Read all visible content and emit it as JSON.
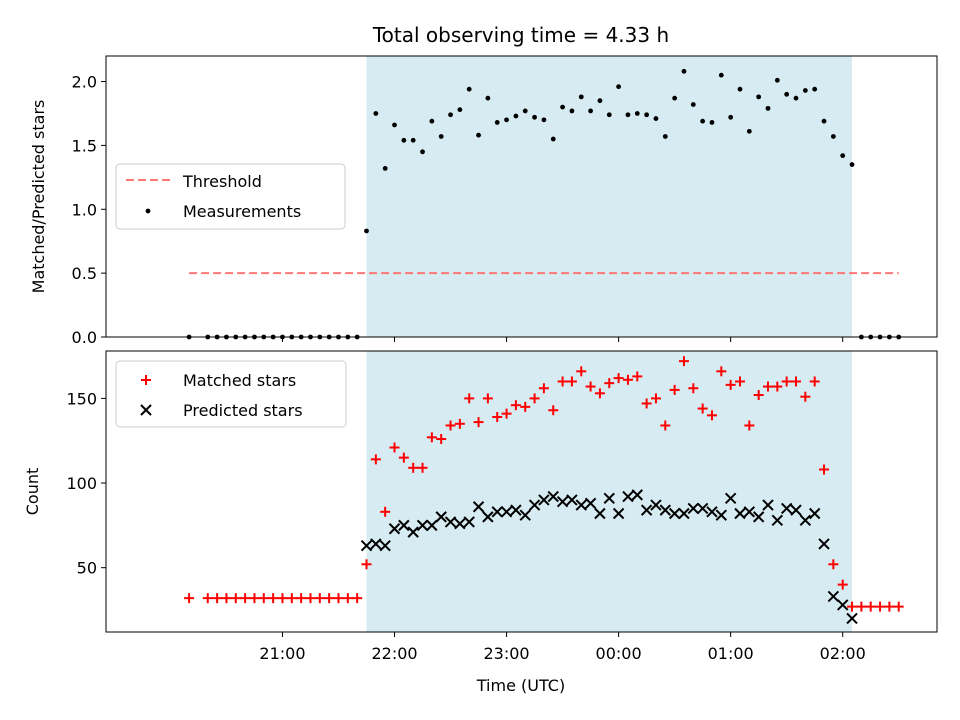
{
  "chart_data": {
    "title": "Total observing time = 4.33 h",
    "xlabel": "Time (UTC)",
    "x_tick_labels": [
      "21:00",
      "22:00",
      "23:00",
      "00:00",
      "01:00",
      "02:00"
    ],
    "observing_window": {
      "start_min": 1305,
      "end_min": 1565,
      "shade_color": "#add8e6"
    },
    "panels": [
      {
        "type": "scatter",
        "ylabel": "Matched/Predicted stars",
        "ylim": [
          0,
          2.2
        ],
        "y_ticks": [
          0,
          0.5,
          1,
          1.5,
          2
        ],
        "y_tick_labels": [
          "0.0",
          "0.5",
          "1.0",
          "1.5",
          "2.0"
        ],
        "legend_position": "center-left",
        "threshold": {
          "name": "Threshold",
          "value": 0.5,
          "color": "#ff7777",
          "x_range": [
            1210,
            1590
          ]
        },
        "series": [
          {
            "name": "Measurements",
            "color": "#000000",
            "marker": "dot",
            "points": [
              [
                1210,
                0
              ],
              [
                1220,
                0
              ],
              [
                1225,
                0
              ],
              [
                1230,
                0
              ],
              [
                1235,
                0
              ],
              [
                1240,
                0
              ],
              [
                1245,
                0
              ],
              [
                1250,
                0
              ],
              [
                1255,
                0
              ],
              [
                1260,
                0
              ],
              [
                1265,
                0
              ],
              [
                1270,
                0
              ],
              [
                1275,
                0
              ],
              [
                1280,
                0
              ],
              [
                1285,
                0
              ],
              [
                1290,
                0
              ],
              [
                1295,
                0
              ],
              [
                1300,
                0
              ],
              [
                1305,
                0.83
              ],
              [
                1310,
                1.75
              ],
              [
                1315,
                1.32
              ],
              [
                1320,
                1.66
              ],
              [
                1325,
                1.54
              ],
              [
                1330,
                1.54
              ],
              [
                1335,
                1.45
              ],
              [
                1340,
                1.69
              ],
              [
                1345,
                1.57
              ],
              [
                1350,
                1.74
              ],
              [
                1355,
                1.78
              ],
              [
                1360,
                1.94
              ],
              [
                1365,
                1.58
              ],
              [
                1370,
                1.87
              ],
              [
                1375,
                1.68
              ],
              [
                1380,
                1.7
              ],
              [
                1385,
                1.73
              ],
              [
                1390,
                1.77
              ],
              [
                1395,
                1.72
              ],
              [
                1400,
                1.7
              ],
              [
                1405,
                1.55
              ],
              [
                1410,
                1.8
              ],
              [
                1415,
                1.77
              ],
              [
                1420,
                1.88
              ],
              [
                1425,
                1.77
              ],
              [
                1430,
                1.85
              ],
              [
                1435,
                1.74
              ],
              [
                1440,
                1.96
              ],
              [
                1445,
                1.74
              ],
              [
                1450,
                1.75
              ],
              [
                1455,
                1.74
              ],
              [
                1460,
                1.71
              ],
              [
                1465,
                1.57
              ],
              [
                1470,
                1.87
              ],
              [
                1475,
                2.08
              ],
              [
                1480,
                1.82
              ],
              [
                1485,
                1.69
              ],
              [
                1490,
                1.68
              ],
              [
                1495,
                2.05
              ],
              [
                1500,
                1.72
              ],
              [
                1505,
                1.94
              ],
              [
                1510,
                1.61
              ],
              [
                1515,
                1.88
              ],
              [
                1520,
                1.79
              ],
              [
                1525,
                2.01
              ],
              [
                1530,
                1.9
              ],
              [
                1535,
                1.87
              ],
              [
                1540,
                1.93
              ],
              [
                1545,
                1.94
              ],
              [
                1550,
                1.69
              ],
              [
                1555,
                1.57
              ],
              [
                1560,
                1.42
              ],
              [
                1565,
                1.35
              ],
              [
                1570,
                0
              ],
              [
                1575,
                0
              ],
              [
                1580,
                0
              ],
              [
                1585,
                0
              ],
              [
                1590,
                0
              ]
            ]
          }
        ]
      },
      {
        "type": "scatter",
        "ylabel": "Count",
        "ylim": [
          12,
          178
        ],
        "y_ticks": [
          50,
          100,
          150
        ],
        "y_tick_labels": [
          "50",
          "100",
          "150"
        ],
        "legend_position": "top-left",
        "series": [
          {
            "name": "Matched stars",
            "color": "#ff0000",
            "marker": "plus",
            "points": [
              [
                1210,
                32
              ],
              [
                1220,
                32
              ],
              [
                1225,
                32
              ],
              [
                1230,
                32
              ],
              [
                1235,
                32
              ],
              [
                1240,
                32
              ],
              [
                1245,
                32
              ],
              [
                1250,
                32
              ],
              [
                1255,
                32
              ],
              [
                1260,
                32
              ],
              [
                1265,
                32
              ],
              [
                1270,
                32
              ],
              [
                1275,
                32
              ],
              [
                1280,
                32
              ],
              [
                1285,
                32
              ],
              [
                1290,
                32
              ],
              [
                1295,
                32
              ],
              [
                1300,
                32
              ],
              [
                1305,
                52
              ],
              [
                1310,
                114
              ],
              [
                1315,
                83
              ],
              [
                1320,
                121
              ],
              [
                1325,
                115
              ],
              [
                1330,
                109
              ],
              [
                1335,
                109
              ],
              [
                1340,
                127
              ],
              [
                1345,
                126
              ],
              [
                1350,
                134
              ],
              [
                1355,
                135
              ],
              [
                1360,
                150
              ],
              [
                1365,
                136
              ],
              [
                1370,
                150
              ],
              [
                1375,
                139
              ],
              [
                1380,
                141
              ],
              [
                1385,
                146
              ],
              [
                1390,
                145
              ],
              [
                1395,
                150
              ],
              [
                1400,
                156
              ],
              [
                1405,
                143
              ],
              [
                1410,
                160
              ],
              [
                1415,
                160
              ],
              [
                1420,
                166
              ],
              [
                1425,
                157
              ],
              [
                1430,
                153
              ],
              [
                1435,
                159
              ],
              [
                1440,
                162
              ],
              [
                1445,
                161
              ],
              [
                1450,
                163
              ],
              [
                1455,
                147
              ],
              [
                1460,
                150
              ],
              [
                1465,
                134
              ],
              [
                1470,
                155
              ],
              [
                1475,
                172
              ],
              [
                1480,
                156
              ],
              [
                1485,
                144
              ],
              [
                1490,
                140
              ],
              [
                1495,
                166
              ],
              [
                1500,
                158
              ],
              [
                1505,
                160
              ],
              [
                1510,
                134
              ],
              [
                1515,
                152
              ],
              [
                1520,
                157
              ],
              [
                1525,
                157
              ],
              [
                1530,
                160
              ],
              [
                1535,
                160
              ],
              [
                1540,
                151
              ],
              [
                1545,
                160
              ],
              [
                1550,
                108
              ],
              [
                1555,
                52
              ],
              [
                1560,
                40
              ],
              [
                1565,
                27
              ],
              [
                1570,
                27
              ],
              [
                1575,
                27
              ],
              [
                1580,
                27
              ],
              [
                1585,
                27
              ],
              [
                1590,
                27
              ]
            ]
          },
          {
            "name": "Predicted stars",
            "color": "#000000",
            "marker": "x",
            "points": [
              [
                1305,
                63
              ],
              [
                1310,
                64
              ],
              [
                1315,
                63
              ],
              [
                1320,
                73
              ],
              [
                1325,
                75
              ],
              [
                1330,
                71
              ],
              [
                1335,
                75
              ],
              [
                1340,
                75
              ],
              [
                1345,
                80
              ],
              [
                1350,
                77
              ],
              [
                1355,
                76
              ],
              [
                1360,
                77
              ],
              [
                1365,
                86
              ],
              [
                1370,
                80
              ],
              [
                1375,
                83
              ],
              [
                1380,
                83
              ],
              [
                1385,
                84
              ],
              [
                1390,
                81
              ],
              [
                1395,
                87
              ],
              [
                1400,
                90
              ],
              [
                1405,
                92
              ],
              [
                1410,
                89
              ],
              [
                1415,
                90
              ],
              [
                1420,
                87
              ],
              [
                1425,
                88
              ],
              [
                1430,
                82
              ],
              [
                1435,
                91
              ],
              [
                1440,
                82
              ],
              [
                1445,
                92
              ],
              [
                1450,
                93
              ],
              [
                1455,
                84
              ],
              [
                1460,
                87
              ],
              [
                1465,
                84
              ],
              [
                1470,
                82
              ],
              [
                1475,
                82
              ],
              [
                1480,
                85
              ],
              [
                1485,
                85
              ],
              [
                1490,
                83
              ],
              [
                1495,
                81
              ],
              [
                1500,
                91
              ],
              [
                1505,
                82
              ],
              [
                1510,
                83
              ],
              [
                1515,
                80
              ],
              [
                1520,
                87
              ],
              [
                1525,
                78
              ],
              [
                1530,
                85
              ],
              [
                1535,
                84
              ],
              [
                1540,
                78
              ],
              [
                1545,
                82
              ],
              [
                1550,
                64
              ],
              [
                1555,
                33
              ],
              [
                1560,
                28
              ],
              [
                1565,
                20
              ]
            ]
          }
        ]
      }
    ]
  }
}
